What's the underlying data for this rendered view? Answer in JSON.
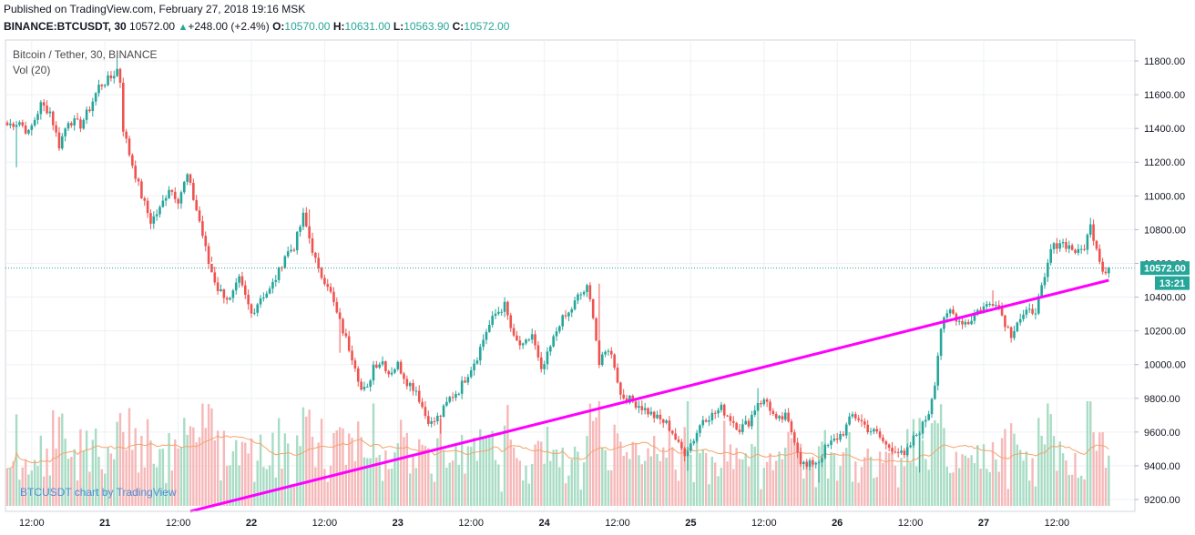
{
  "header": {
    "published": "Published on TradingView.com, February 27, 2018 19:16 MSK",
    "symbol": "BINANCE:BTCUSDT, 30",
    "last": "10572.00",
    "change": "+248.00 (+2.4%)",
    "o_label": "O:",
    "o_value": "10570.00",
    "h_label": "H:",
    "h_value": "10631.00",
    "l_label": "L:",
    "l_value": "10563.90",
    "c_label": "C:",
    "c_value": "10572.00"
  },
  "legend": {
    "title": "Bitcoin / Tether, 30, BINANCE",
    "vol": "Vol (20)"
  },
  "watermark": "BTCUSDT chart by TradingView",
  "colors": {
    "up": "#26a69a",
    "down": "#ef5350",
    "up_vol": "#a8dcc4",
    "down_vol": "#f6b8b8",
    "trendline": "#ff00ff",
    "vol_ma": "#f5a36b",
    "grid": "#eef0f3",
    "price_line": "#26a69a"
  },
  "chart_data": {
    "type": "candlestick",
    "y_ticks": [
      9200,
      9400,
      9600,
      9800,
      10000,
      10200,
      10400,
      10600,
      10800,
      11000,
      11200,
      11400,
      11600,
      11800
    ],
    "y_tick_labels": [
      "9200.00",
      "9400.00",
      "9600.00",
      "9800.00",
      "10000.00",
      "10200.00",
      "10400.00",
      "10600.00",
      "10800.00",
      "11000.00",
      "11200.00",
      "11400.00",
      "11600.00",
      "11800.00"
    ],
    "ylim": [
      9160,
      11870
    ],
    "x_ticks": [
      {
        "label": "12:00",
        "bar": 8
      },
      {
        "label": "21",
        "bar": 32
      },
      {
        "label": "12:00",
        "bar": 56
      },
      {
        "label": "22",
        "bar": 80
      },
      {
        "label": "12:00",
        "bar": 104
      },
      {
        "label": "23",
        "bar": 128
      },
      {
        "label": "12:00",
        "bar": 152
      },
      {
        "label": "24",
        "bar": 176
      },
      {
        "label": "12:00",
        "bar": 200
      },
      {
        "label": "25",
        "bar": 224
      },
      {
        "label": "12:00",
        "bar": 248
      },
      {
        "label": "26",
        "bar": 272
      },
      {
        "label": "12:00",
        "bar": 296
      },
      {
        "label": "27",
        "bar": 320
      },
      {
        "label": "12:00",
        "bar": 344
      }
    ],
    "bar_count": 362,
    "anchors": [
      [
        0,
        11420
      ],
      [
        4,
        11440
      ],
      [
        7,
        11370
      ],
      [
        11,
        11540
      ],
      [
        14,
        11500
      ],
      [
        17,
        11300
      ],
      [
        20,
        11450
      ],
      [
        24,
        11420
      ],
      [
        27,
        11520
      ],
      [
        30,
        11650
      ],
      [
        34,
        11700
      ],
      [
        36,
        11750
      ],
      [
        37,
        11680
      ],
      [
        38,
        11400
      ],
      [
        40,
        11250
      ],
      [
        44,
        11000
      ],
      [
        47,
        10850
      ],
      [
        50,
        10920
      ],
      [
        53,
        11050
      ],
      [
        56,
        10980
      ],
      [
        59,
        11120
      ],
      [
        63,
        10850
      ],
      [
        66,
        10600
      ],
      [
        69,
        10450
      ],
      [
        73,
        10380
      ],
      [
        76,
        10500
      ],
      [
        80,
        10300
      ],
      [
        83,
        10400
      ],
      [
        86,
        10440
      ],
      [
        89,
        10550
      ],
      [
        91,
        10650
      ],
      [
        94,
        10700
      ],
      [
        97,
        10880
      ],
      [
        99,
        10750
      ],
      [
        102,
        10550
      ],
      [
        105,
        10480
      ],
      [
        108,
        10300
      ],
      [
        111,
        10150
      ],
      [
        114,
        10000
      ],
      [
        116,
        9850
      ],
      [
        118,
        9850
      ],
      [
        120,
        10000
      ],
      [
        123,
        10020
      ],
      [
        125,
        9950
      ],
      [
        128,
        10000
      ],
      [
        131,
        9900
      ],
      [
        134,
        9850
      ],
      [
        137,
        9700
      ],
      [
        139,
        9650
      ],
      [
        142,
        9700
      ],
      [
        145,
        9800
      ],
      [
        148,
        9850
      ],
      [
        151,
        9950
      ],
      [
        154,
        10050
      ],
      [
        157,
        10200
      ],
      [
        160,
        10300
      ],
      [
        163,
        10350
      ],
      [
        166,
        10150
      ],
      [
        169,
        10100
      ],
      [
        172,
        10180
      ],
      [
        175,
        9950
      ],
      [
        178,
        10100
      ],
      [
        181,
        10250
      ],
      [
        184,
        10300
      ],
      [
        187,
        10400
      ],
      [
        190,
        10450
      ],
      [
        192,
        10300
      ],
      [
        194,
        10000
      ],
      [
        197,
        10100
      ],
      [
        199,
        10000
      ],
      [
        201,
        9820
      ],
      [
        204,
        9790
      ],
      [
        207,
        9760
      ],
      [
        210,
        9720
      ],
      [
        213,
        9680
      ],
      [
        216,
        9650
      ],
      [
        218,
        9600
      ],
      [
        220,
        9520
      ],
      [
        222,
        9480
      ],
      [
        225,
        9560
      ],
      [
        228,
        9680
      ],
      [
        231,
        9700
      ],
      [
        234,
        9740
      ],
      [
        237,
        9680
      ],
      [
        240,
        9620
      ],
      [
        243,
        9660
      ],
      [
        246,
        9780
      ],
      [
        249,
        9780
      ],
      [
        252,
        9660
      ],
      [
        255,
        9690
      ],
      [
        258,
        9560
      ],
      [
        260,
        9430
      ],
      [
        262,
        9390
      ],
      [
        264,
        9420
      ],
      [
        266,
        9430
      ],
      [
        268,
        9500
      ],
      [
        271,
        9550
      ],
      [
        274,
        9600
      ],
      [
        277,
        9700
      ],
      [
        279,
        9680
      ],
      [
        282,
        9620
      ],
      [
        285,
        9590
      ],
      [
        288,
        9520
      ],
      [
        291,
        9500
      ],
      [
        294,
        9450
      ],
      [
        297,
        9560
      ],
      [
        300,
        9640
      ],
      [
        302,
        9720
      ],
      [
        304,
        9900
      ],
      [
        306,
        10220
      ],
      [
        309,
        10320
      ],
      [
        312,
        10260
      ],
      [
        315,
        10250
      ],
      [
        318,
        10320
      ],
      [
        321,
        10350
      ],
      [
        324,
        10380
      ],
      [
        327,
        10250
      ],
      [
        329,
        10180
      ],
      [
        331,
        10260
      ],
      [
        334,
        10300
      ],
      [
        337,
        10330
      ],
      [
        340,
        10500
      ],
      [
        342,
        10680
      ],
      [
        345,
        10730
      ],
      [
        348,
        10700
      ],
      [
        351,
        10660
      ],
      [
        353,
        10700
      ],
      [
        355,
        10820
      ],
      [
        357,
        10700
      ],
      [
        359,
        10560
      ],
      [
        361,
        10572
      ]
    ],
    "spikes_down": [
      [
        3,
        11170
      ],
      [
        67,
        10640
      ],
      [
        109,
        10070
      ],
      [
        142,
        9590
      ],
      [
        223,
        9370
      ],
      [
        266,
        9300
      ],
      [
        299,
        9360
      ]
    ],
    "spikes_up": [
      [
        36,
        11820
      ],
      [
        99,
        10920
      ],
      [
        194,
        10480
      ],
      [
        246,
        9860
      ],
      [
        323,
        10440
      ],
      [
        355,
        10870
      ]
    ],
    "trendline": {
      "from": {
        "bar": 60,
        "price": 9130
      },
      "to": {
        "bar": 361,
        "price": 10500
      }
    },
    "last_price": {
      "value": 10572.0,
      "label": "10572.00",
      "countdown": "13:21"
    }
  }
}
